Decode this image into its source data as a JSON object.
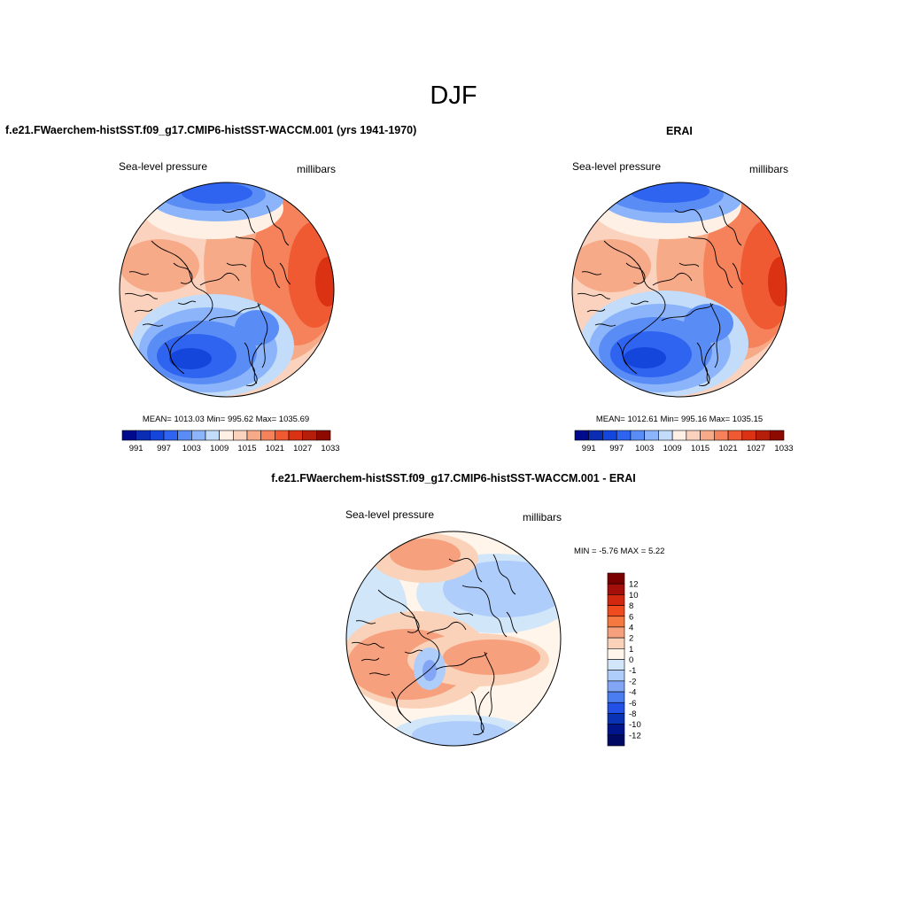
{
  "suptitle": "DJF",
  "panels": [
    {
      "title": "f.e21.FWaerchem-histSST.f09_g17.CMIP6-histSST-WACCM.001 (yrs 1941-1970)",
      "left_label": "Sea-level pressure",
      "right_label": "millibars",
      "stats": "MEAN= 1013.03  Min= 995.62  Max= 1035.69",
      "colorbar_ticks": [
        "991",
        "997",
        "1003",
        "1009",
        "1015",
        "1021",
        "1027",
        "1033"
      ],
      "colorbar_colors": [
        "#000a8c",
        "#0a2db4",
        "#1446dc",
        "#2e64f0",
        "#5a8cf5",
        "#8cb4fa",
        "#c3dcfa",
        "#fff0e6",
        "#fad2be",
        "#f7aa87",
        "#f5825a",
        "#f05a32",
        "#dc3214",
        "#b41e0a",
        "#8c0a00"
      ]
    },
    {
      "title": "ERAI",
      "left_label": "Sea-level pressure",
      "right_label": "millibars",
      "stats": "MEAN= 1012.61  Min= 995.16  Max= 1035.15",
      "colorbar_ticks": [
        "991",
        "997",
        "1003",
        "1009",
        "1015",
        "1021",
        "1027",
        "1033"
      ],
      "colorbar_colors": [
        "#000a8c",
        "#0a2db4",
        "#1446dc",
        "#2e64f0",
        "#5a8cf5",
        "#8cb4fa",
        "#c3dcfa",
        "#fff0e6",
        "#fad2be",
        "#f7aa87",
        "#f5825a",
        "#f05a32",
        "#dc3214",
        "#b41e0a",
        "#8c0a00"
      ]
    },
    {
      "title": "f.e21.FWaerchem-histSST.f09_g17.CMIP6-histSST-WACCM.001 - ERAI",
      "left_label": "Sea-level pressure",
      "right_label": "millibars",
      "minmax": "MIN =  -5.76 MAX =   5.22",
      "colorbar_ticks": [
        "12",
        "10",
        "8",
        "6",
        "4",
        "2",
        "1",
        "0",
        "-1",
        "-2",
        "-4",
        "-6",
        "-8",
        "-10",
        "-12"
      ],
      "colorbar_colors": [
        "#7a0000",
        "#a50f0a",
        "#d2280f",
        "#f04b1e",
        "#f57841",
        "#f7a07d",
        "#fad2b9",
        "#fff5eb",
        "#d2e6fa",
        "#afcdfa",
        "#82a5f5",
        "#4b7df0",
        "#2350e6",
        "#0a32b4",
        "#00148c",
        "#000a64"
      ]
    }
  ]
}
